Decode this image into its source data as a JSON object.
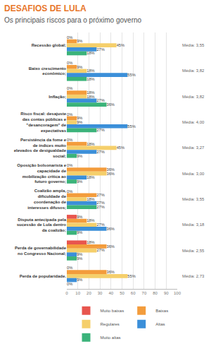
{
  "chart_data": {
    "type": "bar",
    "title": "DESAFIOS DE LULA",
    "subtitle": "Os principais riscos para o próximo governo",
    "orientation": "horizontal",
    "categories": [
      "Recessão global;",
      "Baixo crescimento econômico;",
      "Inflação;",
      "Risco fiscal: desajuste das contas públicas e \"desancoragem\" de expectativas",
      "Persistência da fome e de índices muito elevados de desigualdade social;",
      "Oposição bolsonarista e capacidade de mobilização crítica ao futuro governo;",
      "Coalizão ampla, dificuldade de coordenação de interesses difusos;",
      "Disputa antecipada pela sucessão de Lula dentro da coalizão;",
      "Perda de governabilidade no Congresso Nacional;",
      "Perda de popularidade."
    ],
    "series": [
      {
        "name": "Muito baixas",
        "color": "#e8554e",
        "values": [
          0,
          0,
          0,
          0,
          0,
          0,
          0,
          9,
          18,
          0
        ],
        "value_labels": [
          "0%",
          "0%",
          "0%",
          "0%",
          "0%",
          "0%",
          "0%",
          "9%",
          "18%",
          "0%"
        ]
      },
      {
        "name": "Baixas",
        "color": "#f39c3c",
        "values": [
          9,
          9,
          18,
          9,
          18,
          36,
          27,
          18,
          36,
          36
        ],
        "value_labels": [
          "9%",
          "9%",
          "18%",
          "9%",
          "18%",
          "36%",
          "27%",
          "18%",
          "36%",
          "36%"
        ]
      },
      {
        "name": "Regulares",
        "color": "#f5cf6b",
        "values": [
          45,
          18,
          18,
          9,
          45,
          36,
          18,
          27,
          27,
          55
        ],
        "value_labels": [
          "45%",
          "18%",
          "18%",
          "9%",
          "45%",
          "36%",
          "18%",
          "27%",
          "27%",
          "55%"
        ]
      },
      {
        "name": "Altas",
        "color": "#3b8fd9",
        "values": [
          27,
          55,
          27,
          55,
          27,
          18,
          27,
          36,
          9,
          9
        ],
        "value_labels": [
          "27%",
          "55%",
          "27%",
          "55%",
          "27%",
          "18%",
          "27%",
          "36%",
          "9%",
          "9%"
        ]
      },
      {
        "name": "Muito altas",
        "color": "#3bb37a",
        "values": [
          18,
          18,
          36,
          27,
          9,
          9,
          27,
          9,
          9,
          0
        ],
        "value_labels": [
          "18%",
          "18%",
          "36%",
          "27%",
          "9%",
          "9%",
          "27%",
          "9%",
          "9%",
          "0%"
        ]
      }
    ],
    "annotations": [
      "Média: 3,55",
      "Média: 3,82",
      "Média: 3,82",
      "Média: 4,00",
      "Média: 3,27",
      "Média: 3,00",
      "Média: 3,55",
      "Média: 3,18",
      "Média: 2,55",
      "Média: 2,73"
    ],
    "xlim": [
      0,
      100
    ],
    "xticks": [
      0,
      10,
      20,
      30,
      40,
      50,
      60,
      70,
      80,
      90,
      100
    ],
    "grid": true,
    "data_labels": true,
    "legend": "bottom"
  }
}
